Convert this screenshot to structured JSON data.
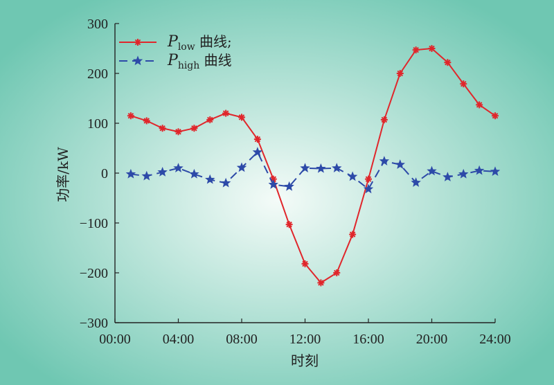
{
  "colors": {
    "background_center": "#f4fbf8",
    "background_edge": "#6fc7b2",
    "low": "#e0262b",
    "high": "#2d4aa8"
  },
  "chart_data": {
    "type": "line",
    "xlabel": "时刻",
    "ylabel": "功率/kW",
    "ylim": [
      -300,
      300
    ],
    "y_ticks": [
      "300",
      "200",
      "100",
      "0",
      "−100",
      "−200",
      "−300"
    ],
    "x_ticks": [
      "00:00",
      "04:00",
      "08:00",
      "12:00",
      "16:00",
      "20:00",
      "24:00"
    ],
    "x": [
      1,
      2,
      3,
      4,
      5,
      6,
      7,
      8,
      9,
      10,
      11,
      12,
      13,
      14,
      15,
      16,
      17,
      18,
      19,
      20,
      21,
      22,
      23,
      24
    ],
    "grid": false,
    "legend_position": "top-left",
    "series": [
      {
        "name": "P_low 曲线;",
        "legend_main": "P",
        "legend_sub": "low",
        "legend_suffix": " 曲线;",
        "line_style": "solid",
        "marker": "asterisk",
        "values": [
          115,
          105,
          90,
          83,
          90,
          107,
          120,
          112,
          68,
          -12,
          -103,
          -182,
          -220,
          -200,
          -123,
          -12,
          107,
          200,
          247,
          250,
          222,
          179,
          137,
          115
        ]
      },
      {
        "name": "P_high 曲线",
        "legend_main": "P",
        "legend_sub": "high",
        "legend_suffix": " 曲线",
        "line_style": "dashed",
        "marker": "star",
        "values": [
          -2,
          -6,
          2,
          10,
          -2,
          -13,
          -20,
          11,
          42,
          -23,
          -27,
          10,
          9,
          10,
          -7,
          -32,
          24,
          17,
          -19,
          4,
          -8,
          -2,
          5,
          3
        ]
      }
    ]
  }
}
